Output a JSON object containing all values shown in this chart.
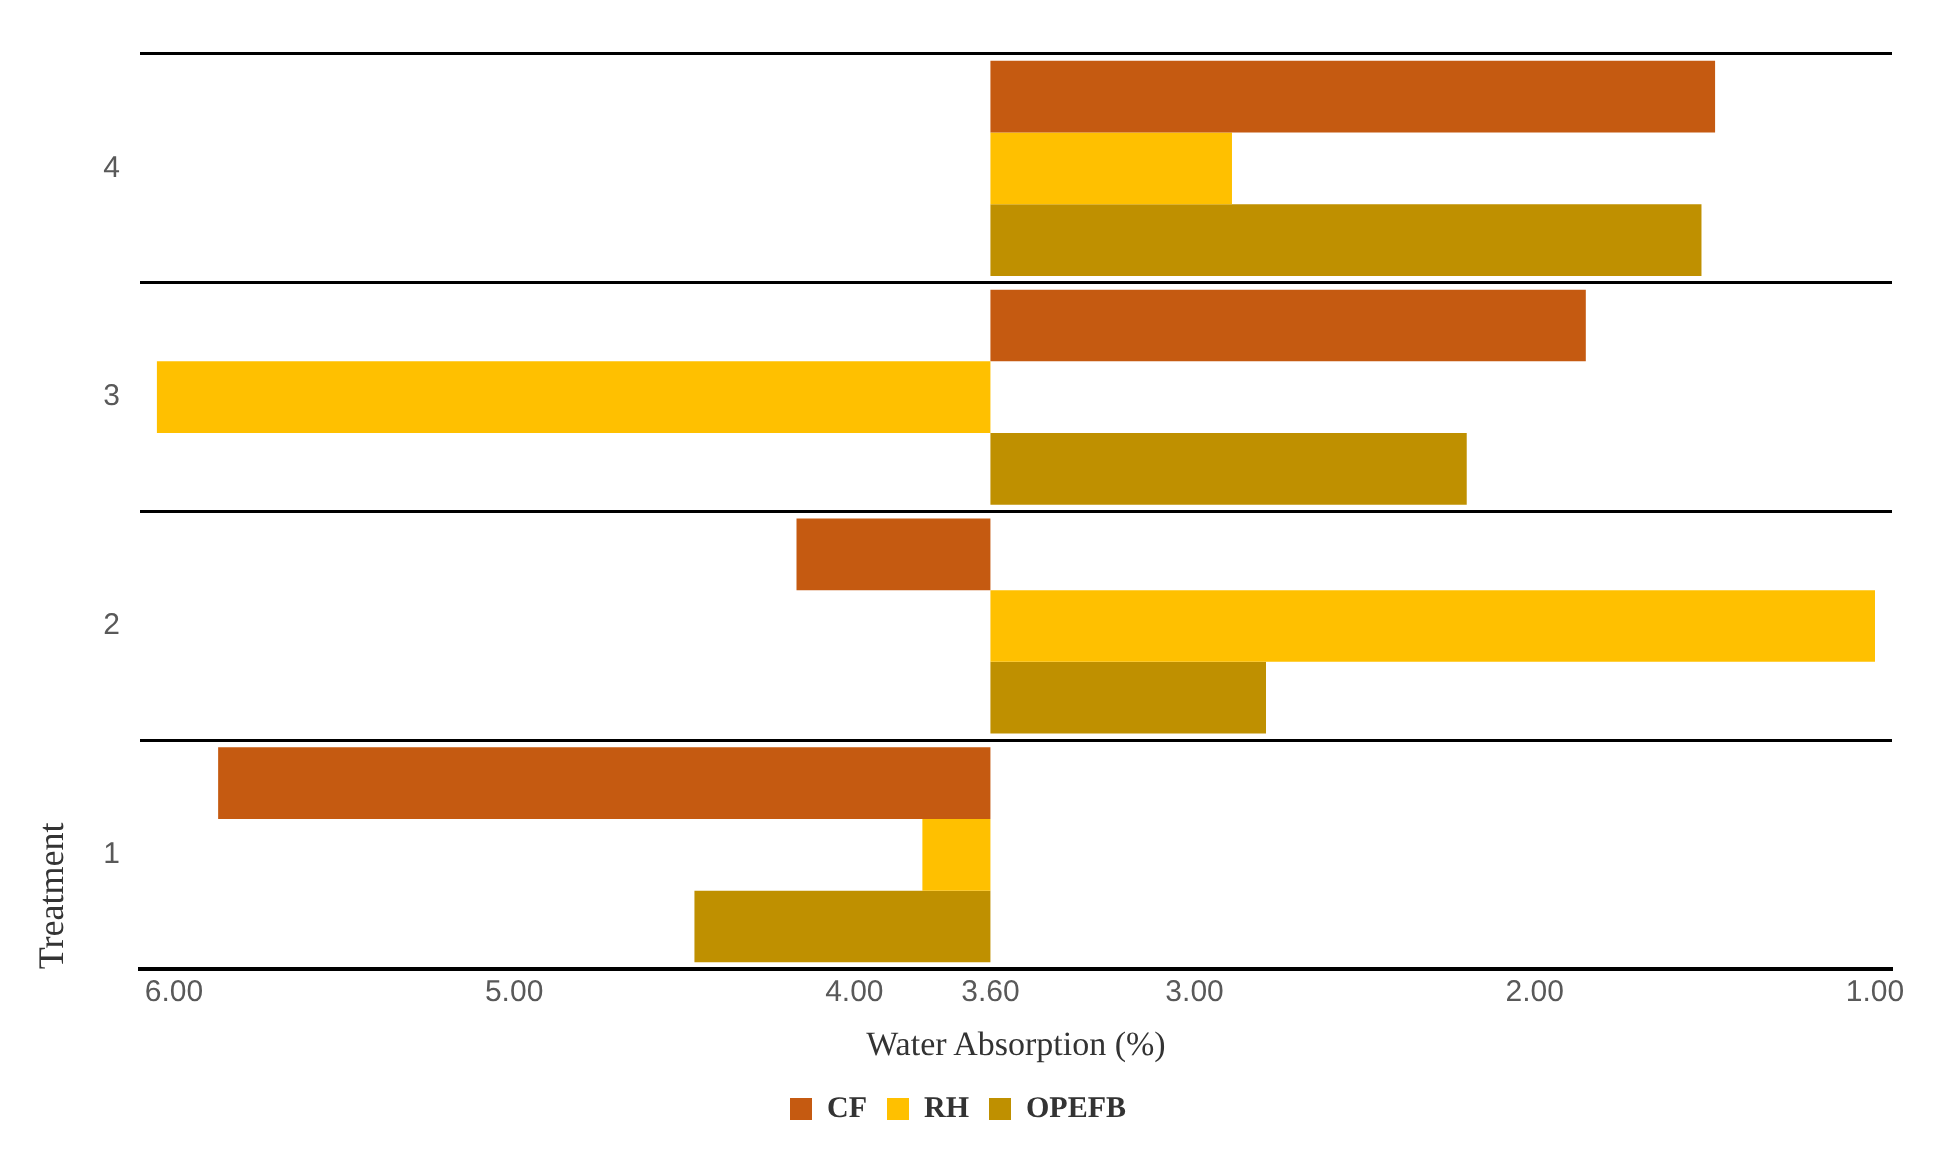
{
  "chart_data": {
    "type": "bar",
    "orientation": "horizontal",
    "xlabel": "Water Absorption (%)",
    "ylabel": "Treatment",
    "categories": [
      "4",
      "3",
      "2",
      "1"
    ],
    "series": [
      {
        "name": "CF",
        "color": "#c55a11",
        "base": [
          3.6,
          3.6,
          3.6,
          3.6
        ],
        "values": [
          -2.13,
          -1.75,
          0.57,
          2.27
        ]
      },
      {
        "name": "RH",
        "color": "#ffc000",
        "base": [
          3.6,
          3.6,
          3.6,
          3.6
        ],
        "values": [
          -0.71,
          2.45,
          -2.6,
          0.2
        ]
      },
      {
        "name": "OPEFB",
        "color": "#bf9000",
        "base": [
          3.6,
          3.6,
          3.6,
          3.6
        ],
        "values": [
          -2.09,
          -1.4,
          -0.81,
          0.87
        ]
      }
    ],
    "xlim": [
      6.1,
      0.95
    ],
    "xticks": [
      {
        "value": 6,
        "label": "6.00"
      },
      {
        "value": 5,
        "label": "5.00"
      },
      {
        "value": 4,
        "label": "4.00"
      },
      {
        "value": 3.6,
        "label": "3.60"
      },
      {
        "value": 3,
        "label": "3.00"
      },
      {
        "value": 2,
        "label": "2.00"
      },
      {
        "value": 1,
        "label": "1.00"
      }
    ],
    "grid": "y",
    "legend": "bottom"
  }
}
